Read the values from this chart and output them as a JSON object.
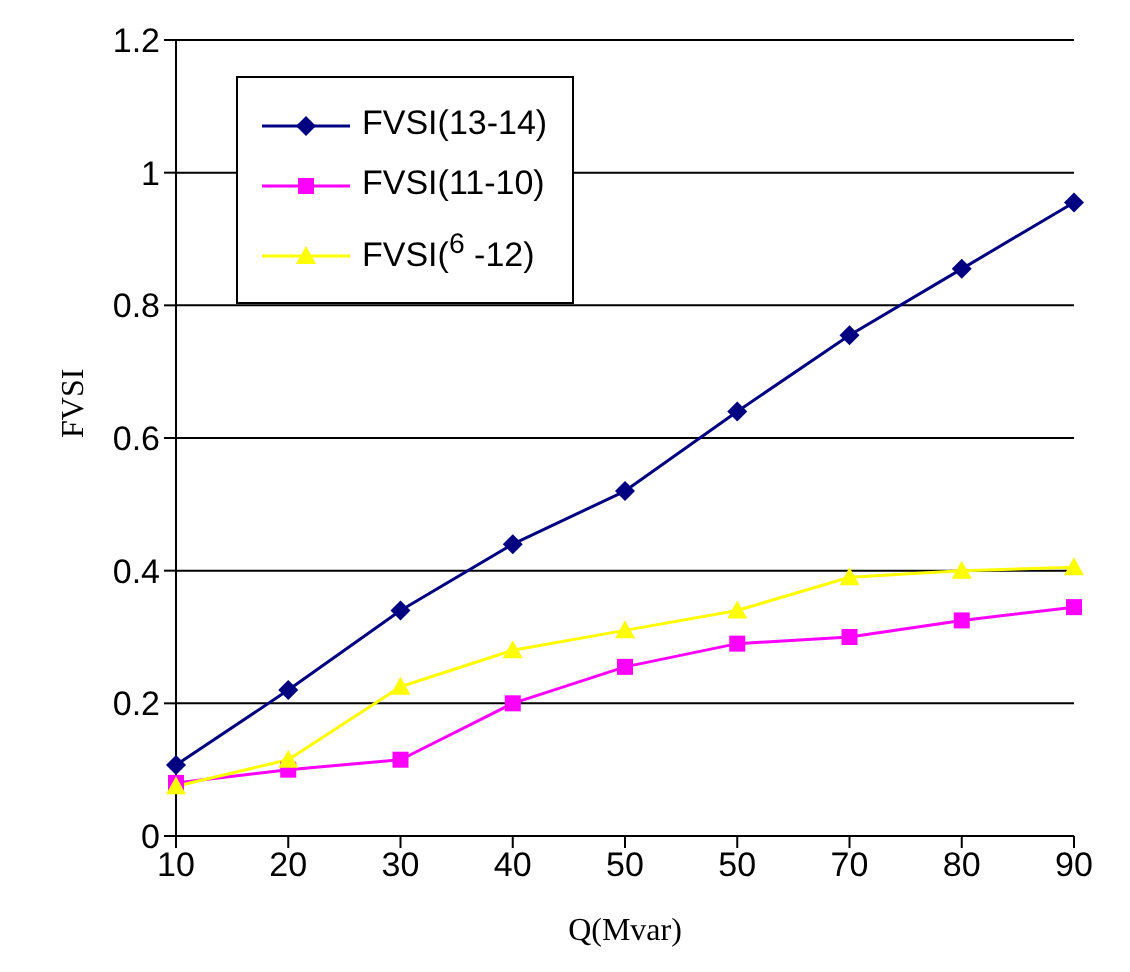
{
  "chart_data": {
    "type": "line",
    "xlabel": "Q(Mvar)",
    "ylabel": "FVSI",
    "categories": [
      "10",
      "20",
      "30",
      "40",
      "50",
      "50",
      "70",
      "80",
      "90"
    ],
    "ylim": [
      0,
      1.2
    ],
    "yticks": [
      0,
      0.2,
      0.4,
      0.6,
      0.8,
      1,
      1.2
    ],
    "grid": "y",
    "legend": "top left",
    "series": [
      {
        "name": "FVSI(13-14)",
        "color": "#000080",
        "marker": "diamond",
        "values": [
          0.107,
          0.22,
          0.34,
          0.44,
          0.52,
          0.64,
          0.755,
          0.855,
          0.955
        ]
      },
      {
        "name": "FVSI(11-10)",
        "color": "#ff00ff",
        "marker": "square",
        "values": [
          0.08,
          0.1,
          0.115,
          0.2,
          0.255,
          0.29,
          0.3,
          0.325,
          0.345
        ]
      },
      {
        "name": "FVSI($^{6}$ -12)",
        "color": "#ffff00",
        "marker": "triangle",
        "values": [
          0.075,
          0.115,
          0.225,
          0.28,
          0.31,
          0.34,
          0.39,
          0.4,
          0.405
        ]
      }
    ]
  }
}
